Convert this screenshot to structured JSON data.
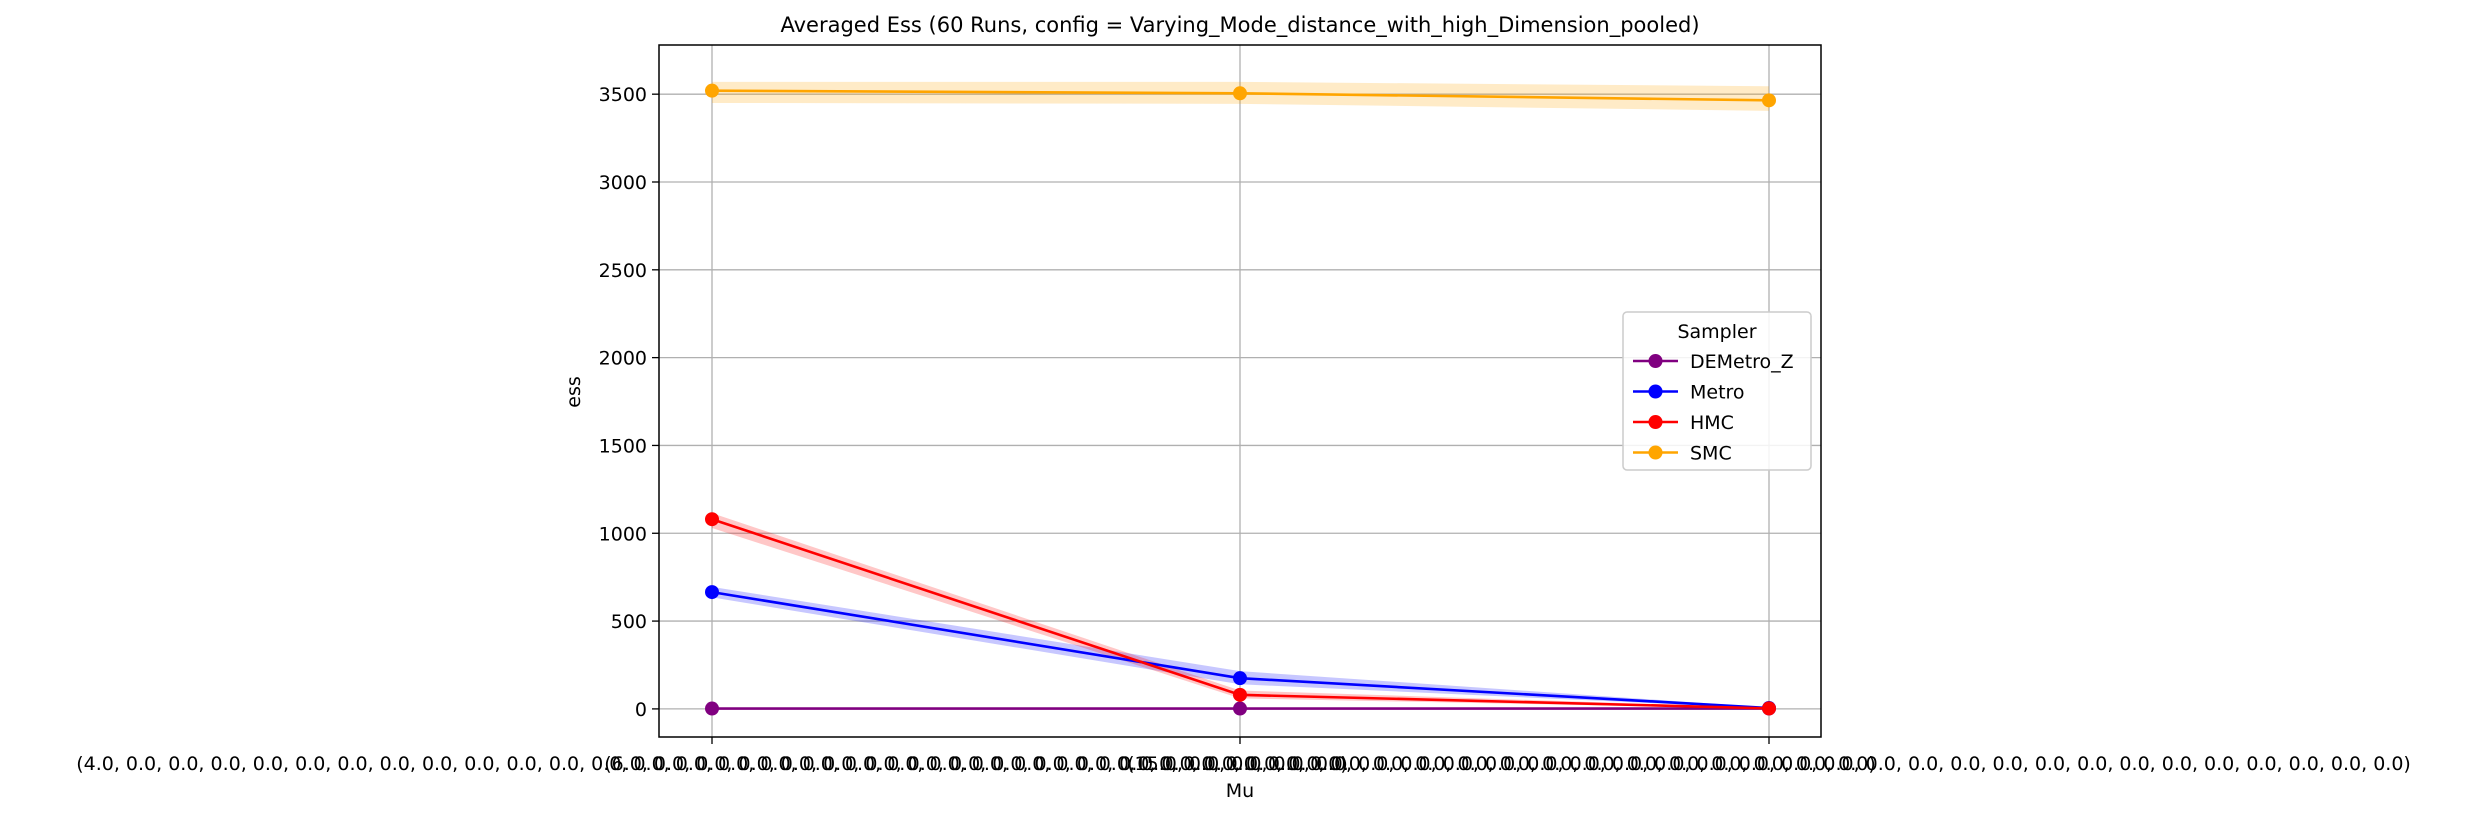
{
  "chart_data": {
    "type": "line",
    "title": "Averaged Ess (60 Runs, config = Varying_Mode_distance_with_high_Dimension_pooled)",
    "xlabel": "Mu",
    "ylabel": "ess",
    "categories": [
      "(4.0, 0.0, 0.0, 0.0, 0.0, 0.0, 0.0, 0.0, 0.0, 0.0, 0.0, 0.0, 0.0, 0.0, 0.0, 0.0, 0.0, 0.0, 0.0, 0.0, 0.0, 0.0, 0.0, 0.0, 0.0, 0.0, 0.0, 0.0, 0.0, 0.0)",
      "(6.0, 0.0, 0.0, 0.0, 0.0, 0.0, 0.0, 0.0, 0.0, 0.0, 0.0, 0.0, 0.0, 0.0, 0.0, 0.0, 0.0, 0.0, 0.0, 0.0, 0.0, 0.0, 0.0, 0.0, 0.0, 0.0, 0.0, 0.0, 0.0, 0.0)",
      "(15.0, 0.0, 0.0, 0.0, 0.0, 0.0, 0.0, 0.0, 0.0, 0.0, 0.0, 0.0, 0.0, 0.0, 0.0, 0.0, 0.0, 0.0, 0.0, 0.0, 0.0, 0.0, 0.0, 0.0, 0.0, 0.0, 0.0, 0.0, 0.0, 0.0)"
    ],
    "yticks": [
      0,
      500,
      1000,
      1500,
      2000,
      2500,
      3000,
      3500
    ],
    "ylim": [
      -160,
      3780
    ],
    "grid": true,
    "legend": {
      "title": "Sampler",
      "placement": "center-right"
    },
    "series": [
      {
        "name": "DEMetro_Z",
        "color": "#800080",
        "values": [
          2,
          2,
          2
        ],
        "ci_low": [
          0,
          0,
          0
        ],
        "ci_high": [
          5,
          5,
          5
        ]
      },
      {
        "name": "Metro",
        "color": "#0000ff",
        "values": [
          665,
          175,
          5
        ],
        "ci_low": [
          635,
          140,
          2
        ],
        "ci_high": [
          695,
          215,
          8
        ]
      },
      {
        "name": "HMC",
        "color": "#ff0000",
        "values": [
          1080,
          80,
          3
        ],
        "ci_low": [
          1030,
          60,
          1
        ],
        "ci_high": [
          1115,
          105,
          6
        ]
      },
      {
        "name": "SMC",
        "color": "#ffa500",
        "values": [
          3520,
          3505,
          3465
        ],
        "ci_low": [
          3450,
          3445,
          3405
        ],
        "ci_high": [
          3570,
          3570,
          3545
        ]
      }
    ]
  }
}
